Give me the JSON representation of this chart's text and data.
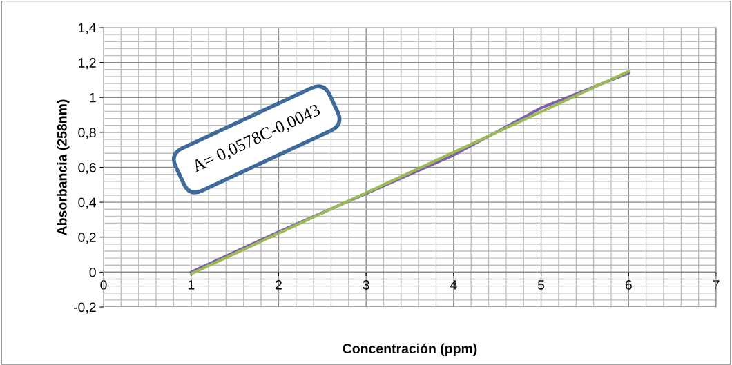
{
  "chart_data": {
    "type": "line",
    "xlabel": "Concentración (ppm)",
    "ylabel": "Absorbancia (258nm)",
    "annotations": [
      "A= 0,0578C-0,0043"
    ],
    "series": [
      {
        "color": "#7f5fa8",
        "x": [
          1,
          2,
          3,
          4,
          5,
          6
        ],
        "values": [
          0.0,
          0.23,
          0.45,
          0.67,
          0.94,
          1.14
        ]
      },
      {
        "color": "#9bbb59",
        "x": [
          1,
          6
        ],
        "values": [
          -0.01,
          1.15
        ]
      }
    ],
    "xlim": [
      0,
      7
    ],
    "xticks": [
      0,
      1,
      2,
      3,
      4,
      5,
      6,
      7
    ],
    "ylim": [
      -0.2,
      1.4
    ],
    "yticks": [
      {
        "value": -0.2,
        "label": "-0,2"
      },
      0,
      {
        "value": 0.2,
        "label": "0,2"
      },
      {
        "value": 0.4,
        "label": "0,4"
      },
      {
        "value": 0.6,
        "label": "0,6"
      },
      {
        "value": 0.8,
        "label": "0,8"
      },
      1,
      {
        "value": 1.2,
        "label": "1,2"
      },
      {
        "value": 1.4,
        "label": "1,4"
      }
    ],
    "grid": true,
    "marker": "none",
    "line_style": "solid"
  }
}
